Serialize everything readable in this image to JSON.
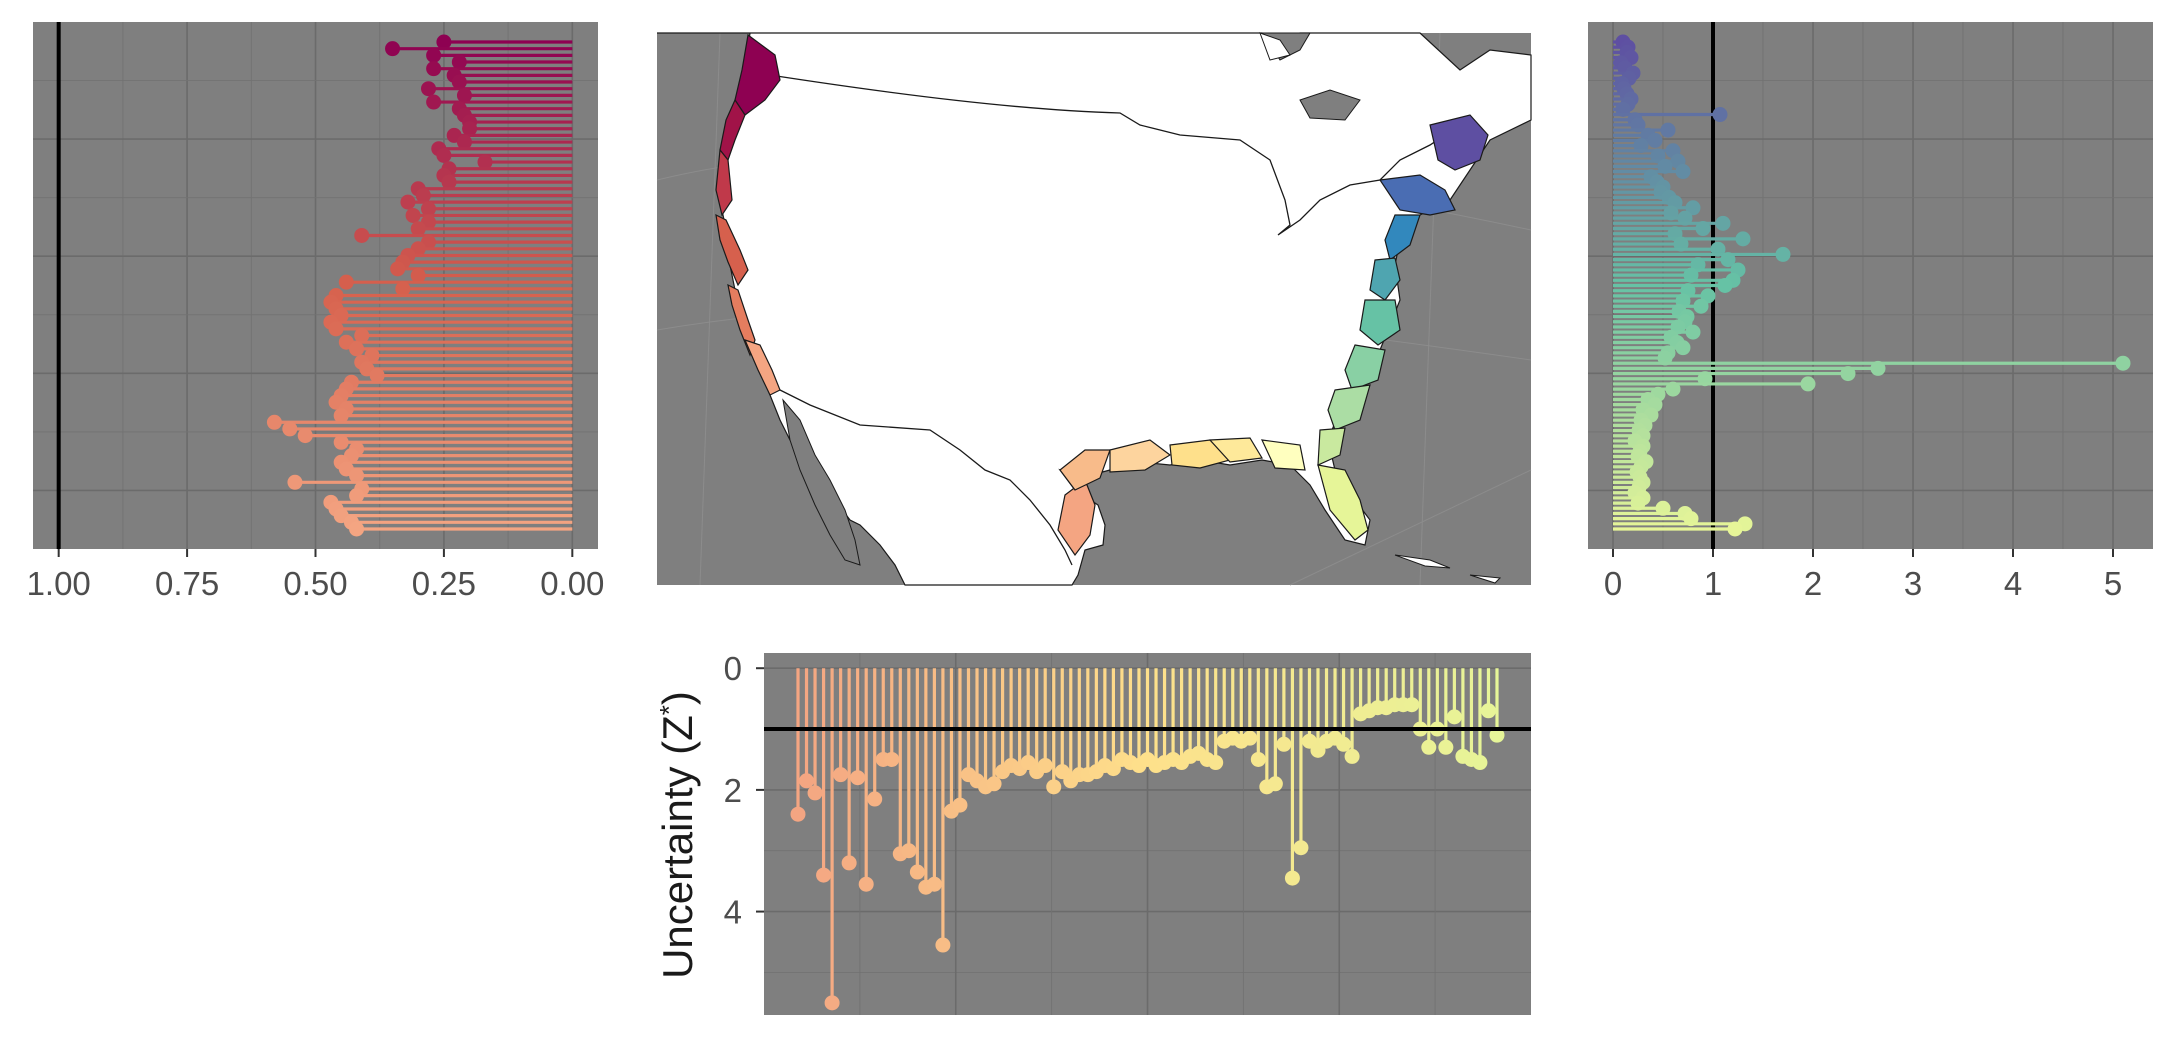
{
  "colors": {
    "panel_bg": "#7f7f7f",
    "reference_line": "#000000",
    "map_land": "#ffffff",
    "map_water": "#7f7f7f",
    "map_border": "#1a1a1a",
    "west_coast_palette": [
      "#8e0152",
      "#b2182b",
      "#d6604d",
      "#f4a582"
    ],
    "east_coast_palette": [
      "#5e4fa2",
      "#3288bd",
      "#66c2a5",
      "#abdda4",
      "#e6f598"
    ],
    "gulf_palette": [
      "#f4a582",
      "#fdd49e",
      "#fee08b",
      "#ffffbf"
    ]
  },
  "chart_data": [
    {
      "id": "west_coast",
      "type": "lollipop",
      "orientation": "horizontal",
      "x_reversed": true,
      "xlim": [
        1.05,
        -0.05
      ],
      "xticks": [
        "1.00",
        "0.75",
        "0.50",
        "0.25",
        "0.00"
      ],
      "xtick_values": [
        1.0,
        0.75,
        0.5,
        0.25,
        0.0
      ],
      "reference": 1.0,
      "color_start": "#8e0152",
      "color_mid": "#d6604d",
      "color_end": "#f4a582",
      "values": [
        0.25,
        0.35,
        0.27,
        0.22,
        0.27,
        0.23,
        0.22,
        0.28,
        0.21,
        0.27,
        0.22,
        0.21,
        0.2,
        0.2,
        0.23,
        0.21,
        0.26,
        0.25,
        0.17,
        0.24,
        0.25,
        0.24,
        0.3,
        0.29,
        0.32,
        0.28,
        0.31,
        0.28,
        0.3,
        0.41,
        0.28,
        0.3,
        0.32,
        0.33,
        0.34,
        0.3,
        0.44,
        0.33,
        0.46,
        0.47,
        0.46,
        0.45,
        0.47,
        0.46,
        0.41,
        0.44,
        0.42,
        0.39,
        0.41,
        0.4,
        0.38,
        0.43,
        0.44,
        0.45,
        0.46,
        0.44,
        0.45,
        0.58,
        0.55,
        0.52,
        0.45,
        0.42,
        0.43,
        0.45,
        0.44,
        0.42,
        0.54,
        0.41,
        0.42,
        0.47,
        0.46,
        0.45,
        0.43,
        0.42
      ]
    },
    {
      "id": "east_coast",
      "type": "lollipop",
      "orientation": "horizontal",
      "xlim": [
        -0.25,
        5.4
      ],
      "xticks": [
        "0",
        "1",
        "2",
        "3",
        "4",
        "5"
      ],
      "xtick_values": [
        0,
        1,
        2,
        3,
        4,
        5
      ],
      "reference": 1.0,
      "color_start": "#5e4fa2",
      "color_mid": "#66c2a5",
      "color_end": "#e6f598",
      "values": [
        0.1,
        0.15,
        0.14,
        0.18,
        0.08,
        0.12,
        0.2,
        0.16,
        0.09,
        0.11,
        0.14,
        0.18,
        0.15,
        0.1,
        1.07,
        0.22,
        0.25,
        0.55,
        0.35,
        0.42,
        0.28,
        0.6,
        0.45,
        0.65,
        0.52,
        0.7,
        0.38,
        0.44,
        0.5,
        0.48,
        0.56,
        0.62,
        0.8,
        0.58,
        0.72,
        1.1,
        0.9,
        0.62,
        1.3,
        0.68,
        1.05,
        1.7,
        1.15,
        0.85,
        1.25,
        0.78,
        1.2,
        1.12,
        0.75,
        0.95,
        0.7,
        0.88,
        0.66,
        0.74,
        0.72,
        0.65,
        0.8,
        0.58,
        0.64,
        0.7,
        0.55,
        0.52,
        5.1,
        2.65,
        2.35,
        0.92,
        1.95,
        0.6,
        0.45,
        0.35,
        0.42,
        0.3,
        0.38,
        0.28,
        0.32,
        0.26,
        0.3,
        0.22,
        0.3,
        0.27,
        0.25,
        0.33,
        0.28,
        0.24,
        0.27,
        0.3,
        0.26,
        0.22,
        0.3,
        0.25,
        0.5,
        0.72,
        0.78,
        1.32,
        1.22
      ]
    },
    {
      "id": "gulf_coast",
      "type": "lollipop",
      "orientation": "vertical",
      "y_reversed": true,
      "ylim": [
        -0.25,
        5.7
      ],
      "yticks": [
        "0",
        "2",
        "4"
      ],
      "ytick_values": [
        0,
        2,
        4
      ],
      "ylabel": "Uncertainty (Z",
      "ylabel_superscript": "*",
      "ylabel_close": ")",
      "reference": 1.0,
      "color_start": "#f4a582",
      "color_mid": "#fee08b",
      "color_end": "#e6f598",
      "values": [
        2.4,
        1.85,
        2.05,
        3.4,
        5.5,
        1.75,
        3.2,
        1.8,
        3.55,
        2.15,
        1.5,
        1.5,
        3.05,
        3.0,
        3.35,
        3.6,
        3.55,
        4.55,
        2.35,
        2.25,
        1.75,
        1.85,
        1.95,
        1.9,
        1.7,
        1.6,
        1.65,
        1.55,
        1.7,
        1.6,
        1.95,
        1.7,
        1.85,
        1.75,
        1.75,
        1.7,
        1.6,
        1.65,
        1.5,
        1.55,
        1.6,
        1.5,
        1.6,
        1.55,
        1.5,
        1.55,
        1.45,
        1.4,
        1.5,
        1.55,
        1.2,
        1.15,
        1.2,
        1.15,
        1.5,
        1.95,
        1.9,
        1.25,
        3.45,
        2.95,
        1.2,
        1.35,
        1.2,
        1.15,
        1.25,
        1.45,
        0.75,
        0.7,
        0.65,
        0.65,
        0.6,
        0.6,
        0.6,
        1.0,
        1.3,
        1.0,
        1.3,
        0.8,
        1.45,
        1.5,
        1.55,
        0.7,
        1.1
      ]
    }
  ]
}
